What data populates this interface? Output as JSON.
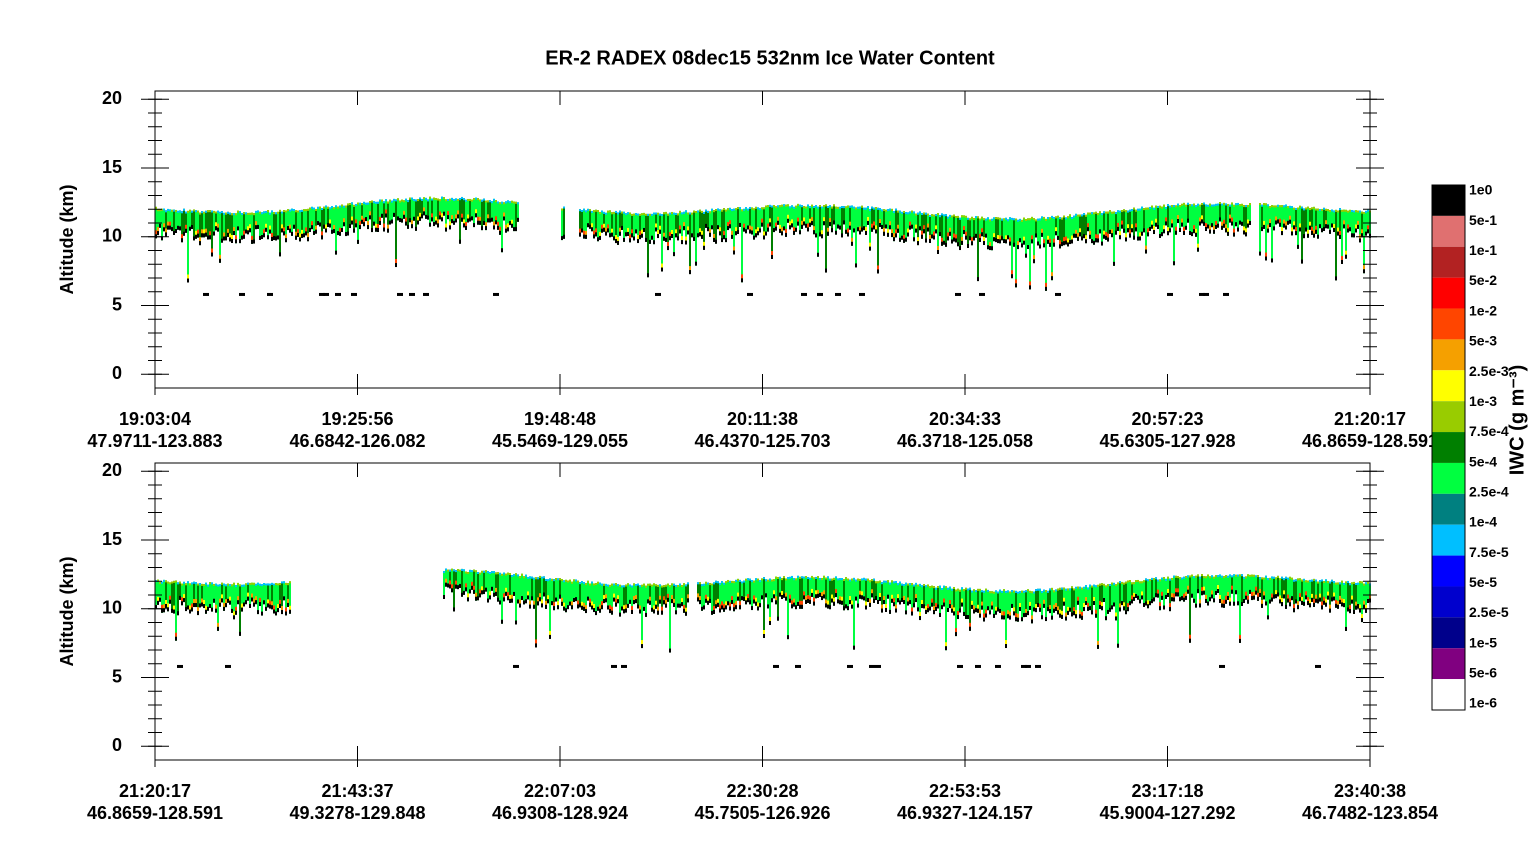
{
  "chart_data": [
    {
      "type": "curtain",
      "title": "ER-2  RADEX  08dec15  532nm Ice Water Content",
      "ylabel": "Altitude (km)",
      "ylim": [
        -1,
        20.6
      ],
      "yticks": [
        0,
        5,
        10,
        15,
        20
      ],
      "xtick_times": [
        "19:03:04",
        "19:25:56",
        "19:48:48",
        "20:11:38",
        "20:34:33",
        "20:57:23",
        "21:20:17"
      ],
      "xtick_locations": [
        "47.9711-123.883",
        "46.6842-126.082",
        "45.5469-129.055",
        "46.4370-125.703",
        "46.3718-125.058",
        "45.6305-127.928",
        "46.8659-128.591"
      ]
    },
    {
      "type": "curtain",
      "ylabel": "Altitude (km)",
      "ylim": [
        -1,
        20.6
      ],
      "yticks": [
        0,
        5,
        10,
        15,
        20
      ],
      "xtick_times": [
        "21:20:17",
        "21:43:37",
        "22:07:03",
        "22:30:28",
        "22:53:53",
        "23:17:18",
        "23:40:38"
      ],
      "xtick_locations": [
        "46.8659-128.591",
        "49.3278-129.848",
        "46.9308-128.924",
        "45.7505-126.926",
        "46.9327-124.157",
        "45.9004-127.292",
        "46.7482-123.854"
      ]
    },
    {
      "type": "colorbar",
      "label": "IWC (g m⁻³)",
      "colors": [
        "#000000",
        "#e07070",
        "#b22222",
        "#ff0000",
        "#ff4500",
        "#f5a000",
        "#ffff00",
        "#99cc00",
        "#007f00",
        "#00ff40",
        "#008080",
        "#00bfff",
        "#0000ff",
        "#0000cd",
        "#00008b",
        "#800080",
        "#ffffff"
      ],
      "ticks": [
        {
          "value": 1,
          "label": "1e0"
        },
        {
          "value": 0.5,
          "label": "5e-1"
        },
        {
          "value": 0.1,
          "label": "1e-1"
        },
        {
          "value": 0.05,
          "label": "5e-2"
        },
        {
          "value": 0.01,
          "label": "1e-2"
        },
        {
          "value": 0.005,
          "label": "5e-3"
        },
        {
          "value": 0.0025,
          "label": "2.5e-3"
        },
        {
          "value": 0.001,
          "label": "1e-3"
        },
        {
          "value": 0.00075,
          "label": "7.5e-4"
        },
        {
          "value": 0.0005,
          "label": "5e-4"
        },
        {
          "value": 0.00025,
          "label": "2.5e-4"
        },
        {
          "value": 0.0001,
          "label": "1e-4"
        },
        {
          "value": 7.5e-05,
          "label": "7.5e-5"
        },
        {
          "value": 5e-05,
          "label": "5e-5"
        },
        {
          "value": 2.5e-05,
          "label": "2.5e-5"
        },
        {
          "value": 1e-05,
          "label": "1e-5"
        },
        {
          "value": 5e-06,
          "label": "5e-6"
        },
        {
          "value": 1e-06,
          "label": "1e-6"
        }
      ]
    }
  ]
}
